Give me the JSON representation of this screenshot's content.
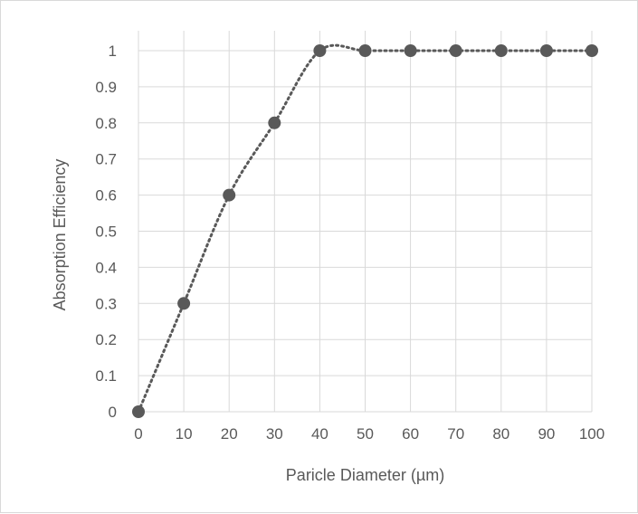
{
  "chart_data": {
    "type": "scatter",
    "title": "",
    "xlabel": "Paricle Diameter (µm)",
    "ylabel": "Absorption Efficiency",
    "xlim": [
      0,
      100
    ],
    "ylim": [
      0,
      1
    ],
    "x_ticks": [
      0,
      10,
      20,
      30,
      40,
      50,
      60,
      70,
      80,
      90,
      100
    ],
    "y_ticks": [
      "0",
      "0.1",
      "0.2",
      "0.3",
      "0.4",
      "0.5",
      "0.6",
      "0.7",
      "0.8",
      "0.9",
      "1"
    ],
    "grid": true,
    "legend": "none",
    "trendline": "smoothed dotted line",
    "series": [
      {
        "x": [
          0,
          10,
          20,
          30,
          40,
          50,
          60,
          70,
          80,
          90,
          100
        ],
        "y": [
          0,
          0.3,
          0.6,
          0.8,
          1,
          1,
          1,
          1,
          1,
          1,
          1
        ],
        "color": "#595959"
      }
    ]
  }
}
